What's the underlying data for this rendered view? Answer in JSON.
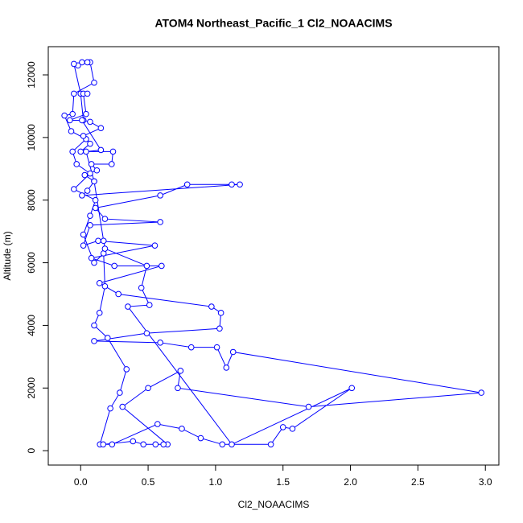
{
  "chart_data": {
    "type": "line",
    "title": "ATOM4 Northeast_Pacific_1 Cl2_NOAACIMS",
    "x_label": "Cl2_NOAACIMS",
    "y_label": "Altitude (m)",
    "color": "#0000ff",
    "x": [
      0.143,
      0.22,
      0.29,
      0.34,
      0.2,
      0.1,
      0.14,
      0.18,
      0.17,
      0.1,
      0.02,
      0.07,
      0.11,
      -0.05,
      0.07,
      -0.03,
      -0.06,
      0.04,
      -0.07,
      -0.12,
      -0.06,
      -0.05,
      0.1,
      0.07,
      0.05,
      0.01,
      -0.02,
      -0.05,
      0.0,
      0.02,
      0.07,
      0.15,
      0.02,
      0.07,
      0.0,
      0.24,
      0.23,
      0.08,
      0.12,
      0.03,
      0.1,
      0.05,
      0.01,
      1.18,
      1.12,
      0.79,
      0.59,
      0.11,
      0.18,
      0.59,
      0.07,
      0.02,
      0.13,
      0.55,
      0.08,
      0.25,
      0.6,
      0.14,
      0.28,
      0.97,
      1.04,
      1.03,
      0.49,
      0.1,
      0.59,
      0.82,
      1.01,
      1.08,
      1.13,
      2.97,
      1.69,
      0.72,
      0.74,
      0.5,
      0.31,
      0.644,
      0.614,
      0.555,
      0.465,
      0.388,
      0.167,
      0.233,
      0.57,
      0.75,
      0.89,
      1.05,
      1.41,
      1.5,
      1.57,
      2.01,
      1.12,
      0.35,
      0.51,
      0.45,
      0.49,
      0.18,
      0.17,
      0.1,
      0.04,
      0.15,
      0.01,
      -0.08,
      0.04,
      0.02,
      0.05
    ],
    "values": [
      200,
      1350,
      1850,
      2600,
      3600,
      4000,
      4400,
      5250,
      6300,
      6000,
      6900,
      7500,
      8000,
      8350,
      8850,
      9150,
      9550,
      9950,
      10200,
      10700,
      10750,
      11400,
      11750,
      12400,
      12400,
      12400,
      12300,
      12350,
      11400,
      10550,
      10500,
      10300,
      10050,
      9800,
      9550,
      9550,
      9150,
      9150,
      8950,
      8800,
      8600,
      8300,
      8150,
      8500,
      8500,
      8500,
      8150,
      7750,
      7400,
      7300,
      7200,
      6550,
      6700,
      6550,
      6150,
      5900,
      5900,
      5350,
      5000,
      4600,
      4400,
      3900,
      3750,
      3500,
      3450,
      3300,
      3300,
      2650,
      3150,
      1850,
      1400,
      2000,
      2550,
      2000,
      1400,
      200,
      200,
      200,
      200,
      300,
      200,
      200,
      850,
      700,
      400,
      200,
      200,
      750,
      700,
      2000,
      200,
      4600,
      4650,
      5200,
      5900,
      6450,
      6700,
      8600,
      9550,
      9600,
      10550,
      10550,
      10750,
      11400,
      11400
    ],
    "xlim": [
      -0.24,
      3.1
    ],
    "ylim": [
      -460,
      12900
    ],
    "xticks": [
      {
        "value": 0,
        "label": "0.0"
      },
      0.5,
      {
        "value": 1,
        "label": "1.0"
      },
      1.5,
      {
        "value": 2,
        "label": "2.0"
      },
      2.5,
      {
        "value": 3,
        "label": "3.0"
      }
    ],
    "yticks": [
      0,
      2000,
      4000,
      6000,
      8000,
      10000,
      12000
    ]
  }
}
